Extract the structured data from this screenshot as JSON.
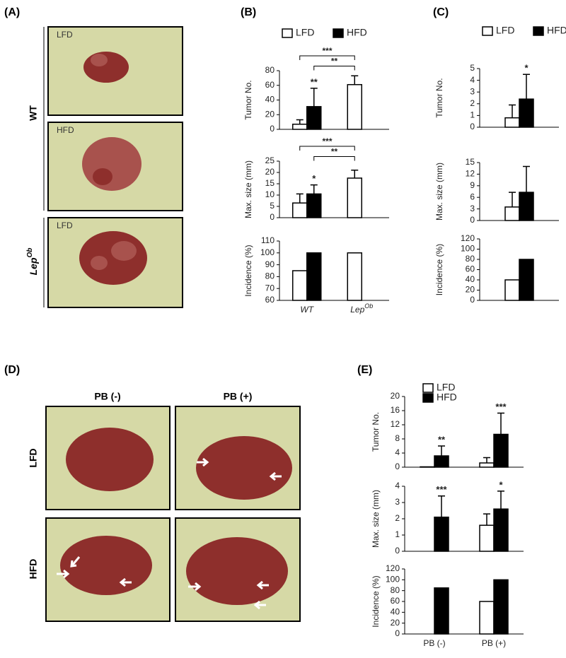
{
  "panel_labels": [
    "(A)",
    "(B)",
    "(C)",
    "(D)",
    "(E)"
  ],
  "panel_a": {
    "photo_labels": [
      "LFD",
      "HFD",
      "LFD"
    ],
    "group_labels": [
      "WT",
      "Lep"
    ],
    "group_superscript": "Ob"
  },
  "panel_d": {
    "column_labels": [
      "PB (-)",
      "PB (+)"
    ],
    "row_labels": [
      "LFD",
      "HFD"
    ]
  },
  "chart_data": [
    {
      "type": "bar",
      "ylabel": "Tumor No.",
      "categories": [
        null,
        null
      ],
      "series": [
        {
          "name": "LFD",
          "color": "#ffffff",
          "values": [
            7,
            61
          ],
          "errors": [
            6,
            12
          ]
        },
        {
          "name": "HFD",
          "color": "#000000",
          "values": [
            31,
            null
          ],
          "errors": [
            25,
            null
          ]
        }
      ],
      "ylim": [
        0,
        80
      ],
      "yticks": [
        0,
        20,
        40,
        60,
        80
      ],
      "legend": "above",
      "annotations": [
        {
          "text": "**",
          "series": 1,
          "index": 0
        }
      ],
      "brackets": [
        {
          "text": "***",
          "from": [
            0,
            0
          ],
          "to": [
            0,
            1
          ]
        },
        {
          "text": "**",
          "from": [
            1,
            0
          ],
          "to": [
            0,
            1
          ]
        }
      ]
    },
    {
      "type": "bar",
      "ylabel": "Max. size (mm)",
      "categories": [
        null,
        null
      ],
      "series": [
        {
          "color": "#ffffff",
          "values": [
            6.5,
            17.5
          ],
          "errors": [
            4,
            3.5
          ]
        },
        {
          "color": "#000000",
          "values": [
            10.5,
            null
          ],
          "errors": [
            4,
            null
          ]
        }
      ],
      "ylim": [
        0,
        25
      ],
      "yticks": [
        0,
        5,
        10,
        15,
        20,
        25
      ],
      "annotations": [
        {
          "text": "*",
          "series": 1,
          "index": 0
        }
      ],
      "brackets": [
        {
          "text": "***",
          "from": [
            0,
            0
          ],
          "to": [
            0,
            1
          ]
        },
        {
          "text": "**",
          "from": [
            1,
            0
          ],
          "to": [
            0,
            1
          ]
        }
      ]
    },
    {
      "type": "bar",
      "ylabel": "Incidence (%)",
      "categories": [
        "WT",
        "Lep"
      ],
      "category_superscripts": [
        null,
        "Ob"
      ],
      "series": [
        {
          "color": "#ffffff",
          "values": [
            85,
            100
          ]
        },
        {
          "color": "#000000",
          "values": [
            100,
            null
          ]
        }
      ],
      "ylim": [
        60,
        110
      ],
      "yticks": [
        60,
        70,
        80,
        90,
        100,
        110
      ]
    },
    {
      "type": "bar",
      "ylabel": "Tumor No.",
      "categories": [
        null
      ],
      "series": [
        {
          "name": "LFD",
          "color": "#ffffff",
          "values": [
            0.8
          ],
          "errors": [
            1.1
          ]
        },
        {
          "name": "HFD",
          "color": "#000000",
          "values": [
            2.4
          ],
          "errors": [
            2.1
          ]
        }
      ],
      "ylim": [
        0,
        5
      ],
      "yticks": [
        0,
        1,
        2,
        3,
        4,
        5
      ],
      "legend": "above",
      "annotations": [
        {
          "text": "*",
          "series": 1,
          "index": 0
        }
      ]
    },
    {
      "type": "bar",
      "ylabel": "Max. size (mm)",
      "categories": [
        null
      ],
      "series": [
        {
          "color": "#ffffff",
          "values": [
            3.5
          ],
          "errors": [
            3.8
          ]
        },
        {
          "color": "#000000",
          "values": [
            7.3
          ],
          "errors": [
            6.7
          ]
        }
      ],
      "ylim": [
        0,
        15
      ],
      "yticks": [
        0,
        3,
        6,
        9,
        12,
        15
      ]
    },
    {
      "type": "bar",
      "ylabel": "Incidence (%)",
      "categories": [
        null
      ],
      "series": [
        {
          "color": "#ffffff",
          "values": [
            40
          ]
        },
        {
          "color": "#000000",
          "values": [
            80
          ]
        }
      ],
      "ylim": [
        0,
        120
      ],
      "yticks": [
        0,
        20,
        40,
        60,
        80,
        100,
        120
      ]
    },
    {
      "type": "bar",
      "ylabel": "Tumor No.",
      "categories": [
        null,
        null
      ],
      "series": [
        {
          "name": "LFD",
          "color": "#ffffff",
          "values": [
            0.1,
            1.2
          ],
          "errors": [
            null,
            1.5
          ]
        },
        {
          "name": "HFD",
          "color": "#000000",
          "values": [
            3.2,
            9.3
          ],
          "errors": [
            2.8,
            6
          ]
        }
      ],
      "ylim": [
        0,
        20
      ],
      "yticks": [
        0,
        4,
        8,
        12,
        16,
        20
      ],
      "legend": "upper left",
      "annotations": [
        {
          "text": "**",
          "series": 1,
          "index": 0
        },
        {
          "text": "***",
          "series": 1,
          "index": 1
        }
      ]
    },
    {
      "type": "bar",
      "ylabel": "Max. size (mm)",
      "categories": [
        null,
        null
      ],
      "series": [
        {
          "color": "#ffffff",
          "values": [
            0,
            1.6
          ],
          "errors": [
            null,
            0.7
          ]
        },
        {
          "color": "#000000",
          "values": [
            2.1,
            2.6
          ],
          "errors": [
            1.3,
            1.1
          ]
        }
      ],
      "ylim": [
        0,
        4
      ],
      "yticks": [
        0,
        1,
        2,
        3,
        4
      ],
      "annotations": [
        {
          "text": "***",
          "series": 1,
          "index": 0
        },
        {
          "text": "*",
          "series": 1,
          "index": 1
        }
      ]
    },
    {
      "type": "bar",
      "ylabel": "Incidence (%)",
      "categories": [
        "PB (-)",
        "PB (+)"
      ],
      "series": [
        {
          "color": "#ffffff",
          "values": [
            0,
            60
          ]
        },
        {
          "color": "#000000",
          "values": [
            85,
            100
          ]
        }
      ],
      "ylim": [
        0,
        120
      ],
      "yticks": [
        0,
        20,
        40,
        60,
        80,
        100,
        120
      ]
    }
  ]
}
